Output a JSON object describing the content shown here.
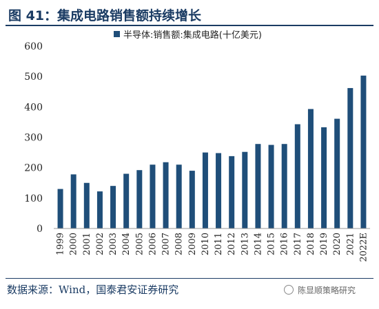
{
  "header": {
    "title": "图 41：集成电路销售额持续增长"
  },
  "footer": {
    "source": "数据来源：Wind，国泰君安证券研究",
    "watermark": "陈显顺策略研究"
  },
  "colors": {
    "bar": "#1f4e79",
    "title": "#1a3b63",
    "axis": "#999999",
    "text": "#222222"
  },
  "chart_data": {
    "type": "bar",
    "title": "",
    "xlabel": "",
    "ylabel": "",
    "ylim": [
      0,
      600
    ],
    "yticks": [
      0,
      100,
      200,
      300,
      400,
      500,
      600
    ],
    "grid": false,
    "legend_position": "top",
    "categories": [
      "1999",
      "2000",
      "2001",
      "2002",
      "2003",
      "2004",
      "2005",
      "2006",
      "2007",
      "2008",
      "2009",
      "2010",
      "2011",
      "2012",
      "2013",
      "2014",
      "2015",
      "2016",
      "2017",
      "2018",
      "2019",
      "2020",
      "2021",
      "2022E"
    ],
    "series": [
      {
        "name": "半导体:销售额:集成电路(十亿美元)",
        "values": [
          130,
          178,
          150,
          122,
          140,
          180,
          192,
          210,
          218,
          210,
          190,
          250,
          248,
          238,
          252,
          278,
          275,
          278,
          343,
          393,
          333,
          361,
          462,
          503
        ]
      }
    ]
  }
}
